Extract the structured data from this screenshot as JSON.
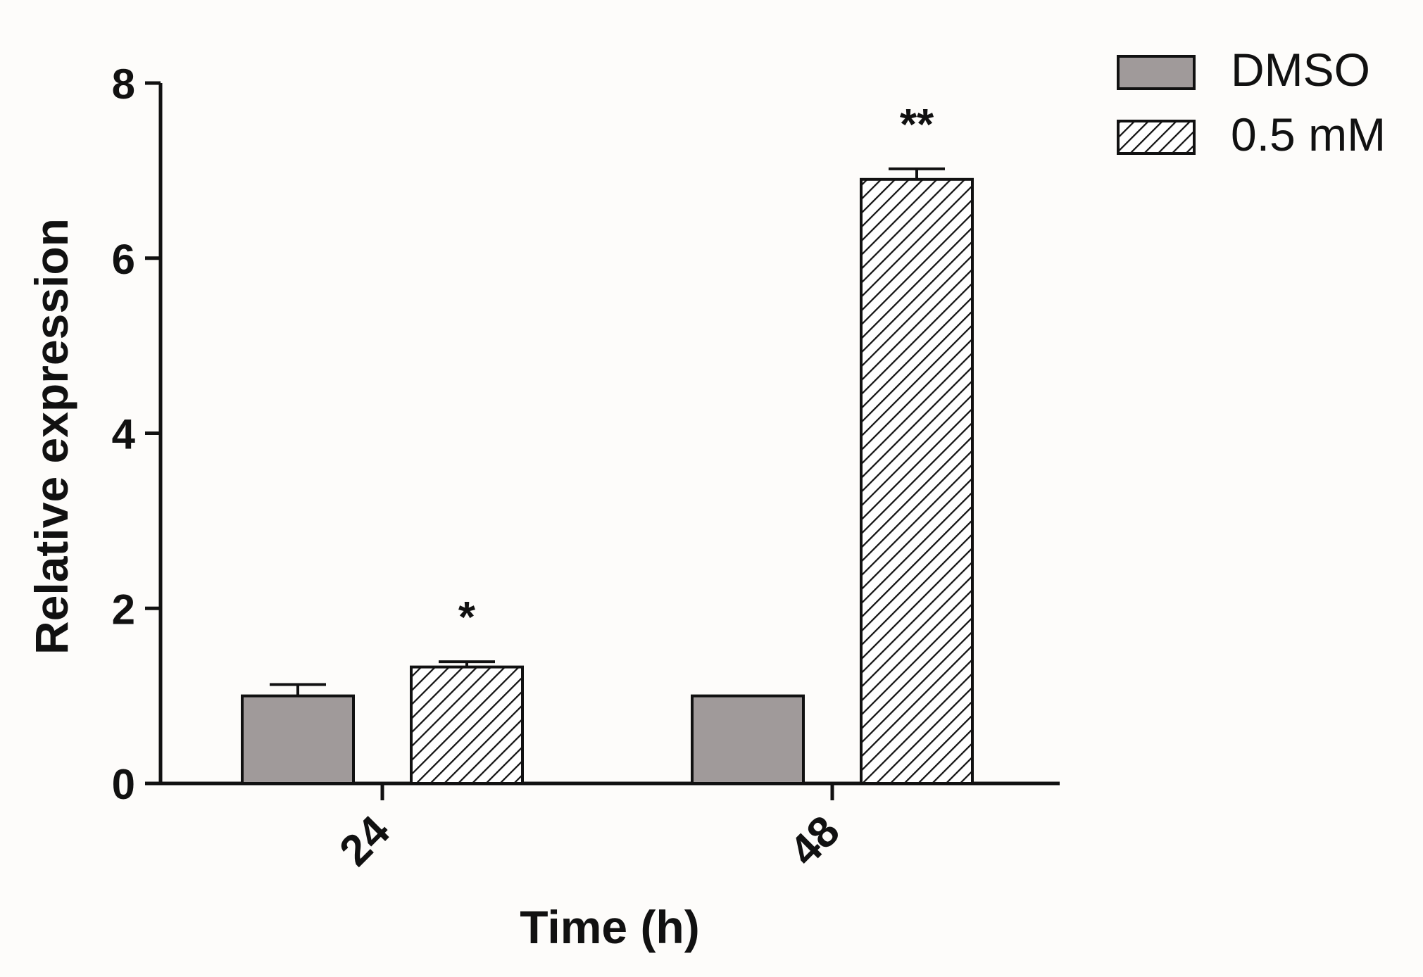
{
  "chart_data": {
    "type": "bar",
    "title": "",
    "xlabel": "Time (h)",
    "ylabel": "Relative expression",
    "categories": [
      "24",
      "48"
    ],
    "ylim": [
      0,
      8
    ],
    "yticks": [
      0,
      2,
      4,
      6,
      8
    ],
    "grid": false,
    "legend_position": "top-right",
    "series": [
      {
        "name": "DMSO",
        "values": [
          1.0,
          1.0
        ],
        "errors": [
          0.13,
          0.0
        ],
        "fill": "#a09a9a",
        "pattern": "solid"
      },
      {
        "name": "0.5 mM",
        "values": [
          1.33,
          6.9
        ],
        "errors": [
          0.06,
          0.12
        ],
        "fill": "#ffffff",
        "pattern": "diagonal-hatch"
      }
    ],
    "annotations": [
      {
        "category": "24",
        "series": "0.5 mM",
        "text": "*"
      },
      {
        "category": "48",
        "series": "0.5 mM",
        "text": "**"
      }
    ]
  }
}
